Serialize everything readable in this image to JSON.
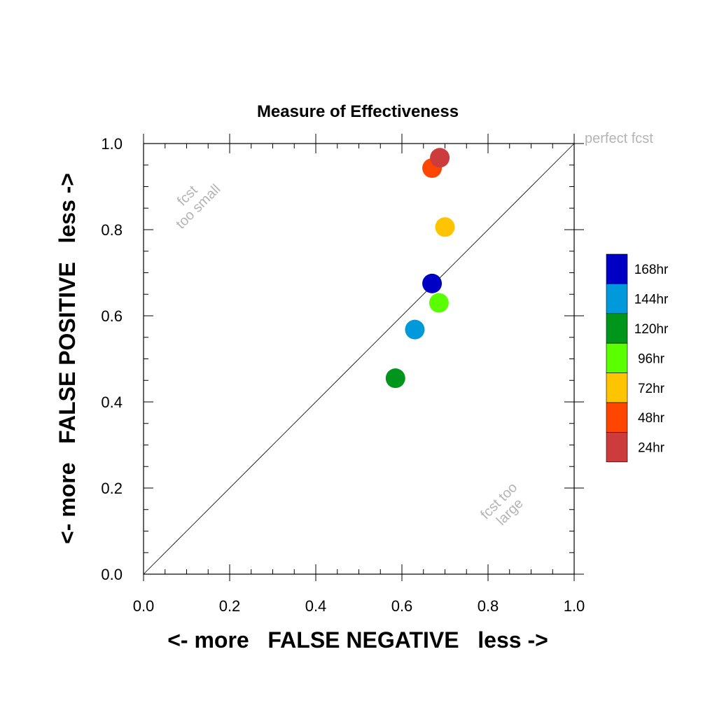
{
  "chart_data": {
    "type": "scatter",
    "title": "Measure of Effectiveness",
    "xlabel": "<- more   FALSE NEGATIVE   less ->",
    "ylabel": "<- more   FALSE POSITIVE   less ->",
    "xlim": [
      0.0,
      1.0
    ],
    "ylim": [
      0.0,
      1.0
    ],
    "xticks": [
      "0.0",
      "0.2",
      "0.4",
      "0.6",
      "0.8",
      "1.0"
    ],
    "yticks": [
      "0.0",
      "0.2",
      "0.4",
      "0.6",
      "0.8",
      "1.0"
    ],
    "grid": false,
    "diagonal": "y = x",
    "legend_position": "right",
    "annotations": {
      "perfect": "perfect fcst",
      "small_line1": "fcst",
      "small_line2": "too small",
      "large_line1": "fcst too",
      "large_line2": "large"
    },
    "series": [
      {
        "name": "168hr",
        "color": "#0000c4",
        "x": 0.67,
        "y": 0.675
      },
      {
        "name": "144hr",
        "color": "#0099dc",
        "x": 0.63,
        "y": 0.568
      },
      {
        "name": "120hr",
        "color": "#00961c",
        "x": 0.585,
        "y": 0.455
      },
      {
        "name": "96hr",
        "color": "#5aff00",
        "x": 0.686,
        "y": 0.63
      },
      {
        "name": "72hr",
        "color": "#ffc400",
        "x": 0.7,
        "y": 0.806
      },
      {
        "name": "48hr",
        "color": "#ff4600",
        "x": 0.67,
        "y": 0.943
      },
      {
        "name": "24hr",
        "color": "#cd3c3c",
        "x": 0.688,
        "y": 0.967
      }
    ]
  }
}
